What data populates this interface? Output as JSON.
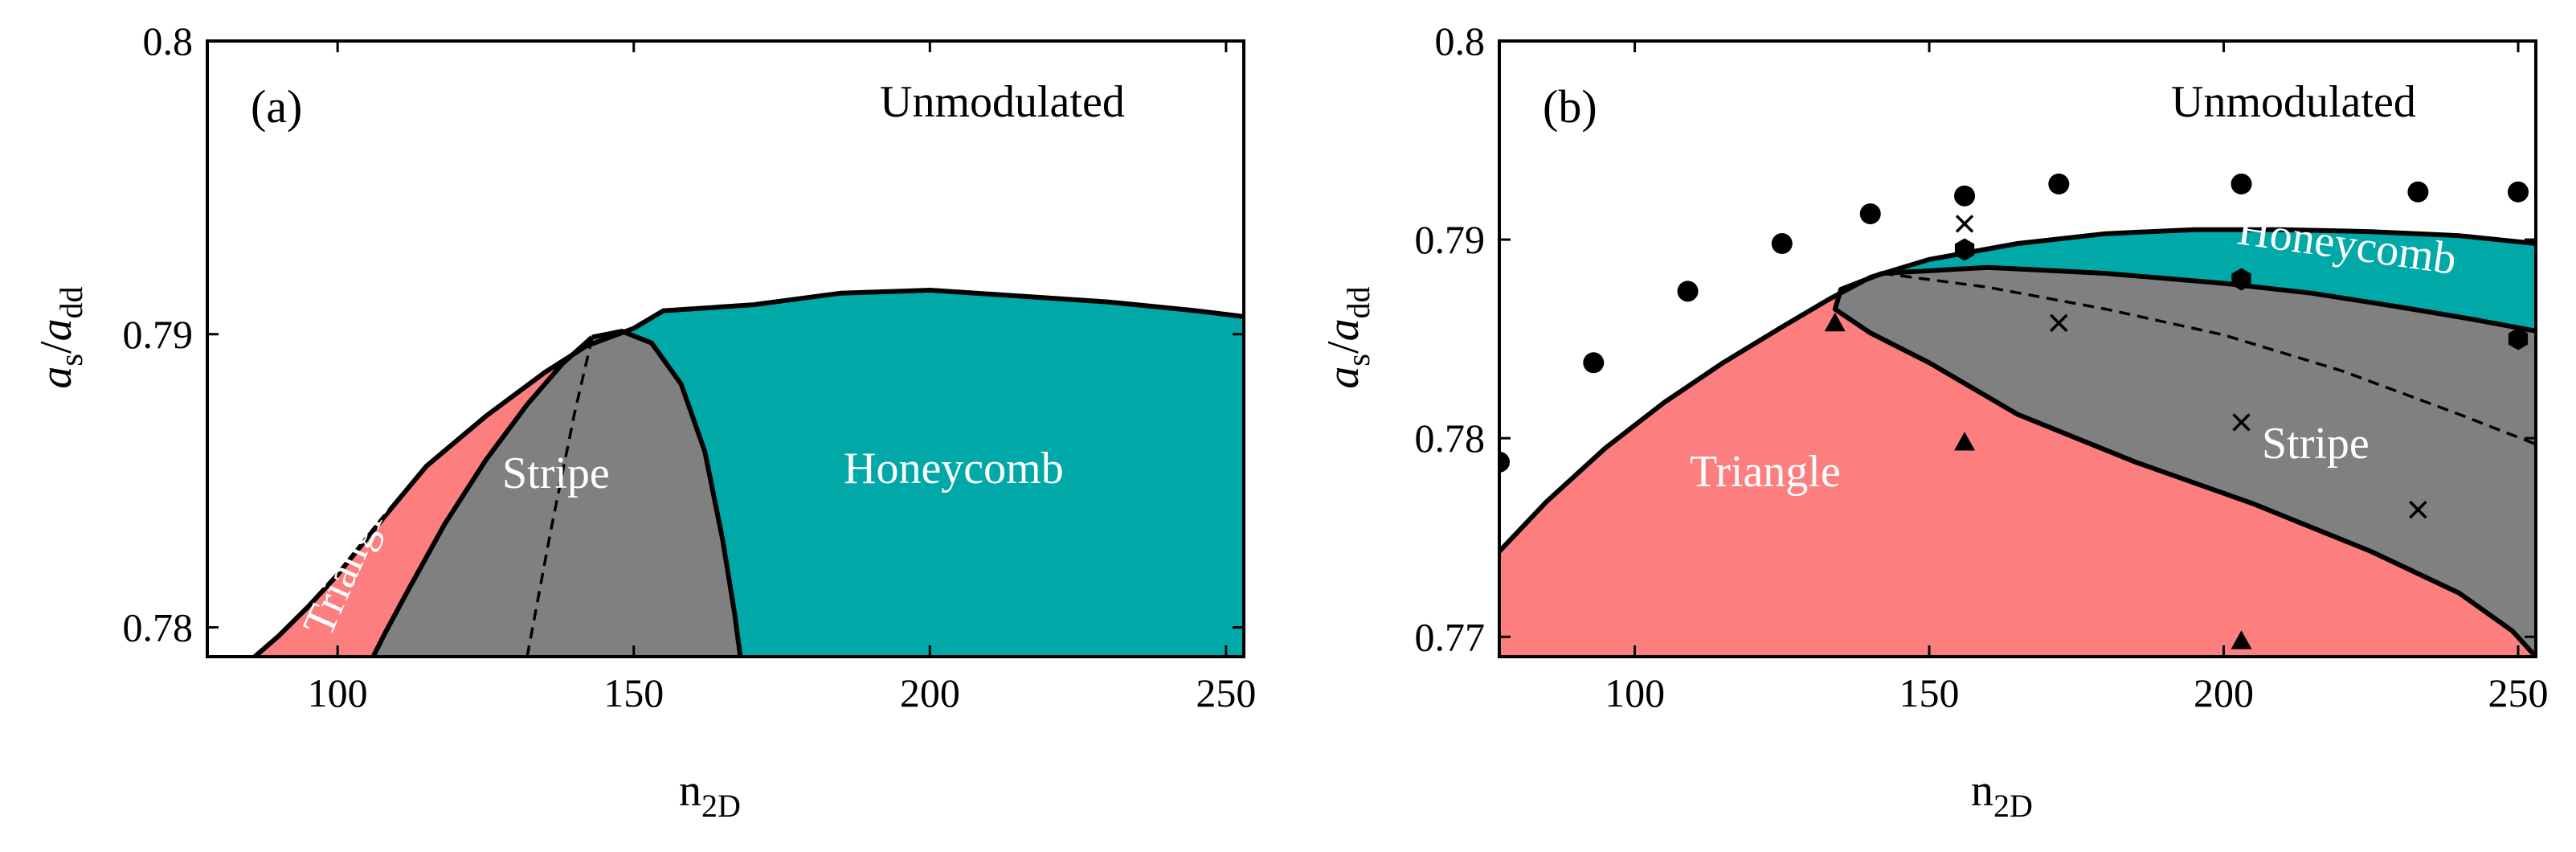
{
  "chart_data": [
    {
      "panel": "(a)",
      "type": "area",
      "xlabel": "n",
      "xlabel_sub": "2D",
      "ylabel_base": "a",
      "ylabel_sub1": "s",
      "ylabel_slash": "/",
      "ylabel_base2": "a",
      "ylabel_sub2": "dd",
      "xlim": [
        78,
        253
      ],
      "ylim": [
        0.779,
        0.8
      ],
      "xticks": [
        100,
        150,
        200,
        250
      ],
      "xtick_labels": [
        "100",
        "150",
        "200",
        "250"
      ],
      "yticks": [
        0.78,
        0.79,
        0.8
      ],
      "ytick_labels": [
        "0.78",
        "0.79",
        "0.8"
      ],
      "colors": {
        "triangle": "#fd7e7e",
        "stripe": "#808080",
        "honeycomb": "#00a8a8",
        "unmodulated": "#ffffff"
      },
      "upper_boundary": [
        [
          86,
          0.779
        ],
        [
          90,
          0.7797
        ],
        [
          95,
          0.7807
        ],
        [
          100,
          0.7818
        ],
        [
          108,
          0.7838
        ],
        [
          115,
          0.7855
        ],
        [
          125,
          0.7872
        ],
        [
          135,
          0.7887
        ],
        [
          142,
          0.7896
        ],
        [
          150,
          0.7902
        ],
        [
          155,
          0.7908
        ],
        [
          170,
          0.791
        ],
        [
          185,
          0.7914
        ],
        [
          200,
          0.7915
        ],
        [
          215,
          0.7913
        ],
        [
          230,
          0.7911
        ],
        [
          245,
          0.7908
        ],
        [
          253,
          0.7906
        ]
      ],
      "triangle_stripe_boundary": [
        [
          106,
          0.779
        ],
        [
          108,
          0.7798
        ],
        [
          112,
          0.7813
        ],
        [
          118,
          0.7835
        ],
        [
          125,
          0.7857
        ],
        [
          132,
          0.7876
        ],
        [
          138,
          0.789
        ],
        [
          143,
          0.7899
        ]
      ],
      "stripe_honeycomb_boundary": [
        [
          143,
          0.7899
        ],
        [
          148,
          0.7901
        ],
        [
          153,
          0.7897
        ],
        [
          158,
          0.7883
        ],
        [
          162,
          0.786
        ],
        [
          165,
          0.783
        ],
        [
          167,
          0.7805
        ],
        [
          168,
          0.779
        ]
      ],
      "stripe_internal_dashed": [
        [
          132,
          0.779
        ],
        [
          136,
          0.7833
        ],
        [
          140,
          0.7873
        ],
        [
          143,
          0.7899
        ]
      ],
      "region_labels": {
        "unmodulated": "Unmodulated",
        "triangle": "Triangle",
        "stripe": "Stripe",
        "honeycomb": "Honeycomb"
      }
    },
    {
      "panel": "(b)",
      "type": "area",
      "xlabel": "n",
      "xlabel_sub": "2D",
      "ylabel_base": "a",
      "ylabel_sub1": "s",
      "ylabel_slash": "/",
      "ylabel_base2": "a",
      "ylabel_sub2": "dd",
      "xlim": [
        77,
        253
      ],
      "ylim": [
        0.769,
        0.8
      ],
      "xticks": [
        100,
        150,
        200,
        250
      ],
      "xtick_labels": [
        "100",
        "150",
        "200",
        "250"
      ],
      "yticks": [
        0.77,
        0.78,
        0.79,
        0.8
      ],
      "ytick_labels": [
        "0.77",
        "0.78",
        "0.79",
        "0.8"
      ],
      "colors": {
        "triangle": "#fd7e7e",
        "stripe": "#808080",
        "honeycomb": "#00a8a8",
        "unmodulated": "#ffffff"
      },
      "upper_boundary": [
        [
          77,
          0.7743
        ],
        [
          85,
          0.7768
        ],
        [
          95,
          0.7795
        ],
        [
          105,
          0.7818
        ],
        [
          115,
          0.7838
        ],
        [
          125,
          0.7856
        ],
        [
          133,
          0.787
        ],
        [
          140,
          0.7881
        ],
        [
          150,
          0.789
        ],
        [
          165,
          0.7898
        ],
        [
          180,
          0.7903
        ],
        [
          195,
          0.7905
        ],
        [
          210,
          0.7905
        ],
        [
          225,
          0.7904
        ],
        [
          240,
          0.7902
        ],
        [
          253,
          0.7898
        ]
      ],
      "stripe_honeycomb_boundary": [
        [
          142,
          0.7883
        ],
        [
          160,
          0.7886
        ],
        [
          180,
          0.7883
        ],
        [
          200,
          0.7878
        ],
        [
          215,
          0.7873
        ],
        [
          230,
          0.7866
        ],
        [
          242,
          0.786
        ],
        [
          253,
          0.7854
        ]
      ],
      "triangle_stripe_boundary": [
        [
          142,
          0.7883
        ],
        [
          135,
          0.7875
        ],
        [
          134,
          0.7865
        ],
        [
          140,
          0.7853
        ],
        [
          150,
          0.7838
        ],
        [
          165,
          0.7812
        ],
        [
          185,
          0.7788
        ],
        [
          205,
          0.7767
        ],
        [
          225,
          0.7743
        ],
        [
          240,
          0.7722
        ],
        [
          249,
          0.7703
        ],
        [
          253,
          0.769
        ]
      ],
      "stripe_internal_dashed": [
        [
          142,
          0.7883
        ],
        [
          160,
          0.7876
        ],
        [
          180,
          0.7865
        ],
        [
          200,
          0.7852
        ],
        [
          220,
          0.7834
        ],
        [
          240,
          0.7812
        ],
        [
          253,
          0.7797
        ]
      ],
      "series": [
        {
          "name": "unmodulated",
          "marker": "circle",
          "x": [
            77,
            93,
            109,
            125,
            140,
            156,
            172,
            203,
            233,
            250
          ],
          "y": [
            0.7788,
            0.7838,
            0.7874,
            0.7898,
            0.7913,
            0.7922,
            0.7928,
            0.7928,
            0.7924,
            0.7924
          ]
        },
        {
          "name": "honeycomb",
          "marker": "hexagon",
          "x": [
            156,
            203,
            250
          ],
          "y": [
            0.7895,
            0.788,
            0.785
          ]
        },
        {
          "name": "stripe",
          "marker": "cross",
          "x": [
            156,
            172,
            203,
            233
          ],
          "y": [
            0.7908,
            0.7858,
            0.7808,
            0.7764
          ]
        },
        {
          "name": "triangle",
          "marker": "triangle",
          "x": [
            134,
            156,
            203
          ],
          "y": [
            0.7858,
            0.7798,
            0.7698
          ]
        }
      ],
      "region_labels": {
        "unmodulated": "Unmodulated",
        "triangle": "Triangle",
        "stripe": "Stripe",
        "honeycomb": "Honeycomb"
      }
    }
  ]
}
